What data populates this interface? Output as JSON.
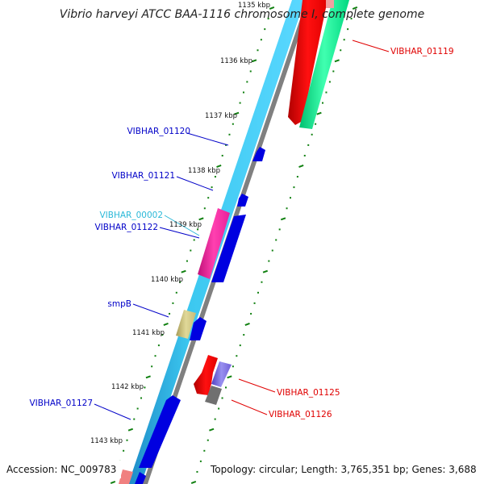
{
  "title": "Vibrio harveyi ATCC BAA-1116 chromosome I, complete genome",
  "footer": {
    "accession": "Accession: NC_009783",
    "summary": "Topology: circular; Length: 3,765,351 bp; Genes: 3,688"
  },
  "scale_labels": [
    "1135 kbp",
    "1136 kbp",
    "1137 kbp",
    "1138 kbp",
    "1139 kbp",
    "1140 kbp",
    "1141 kbp",
    "1142 kbp",
    "1143 kbp"
  ],
  "gene_labels": {
    "left": [
      {
        "text": "VIBHAR_01120",
        "color": "#0000c8"
      },
      {
        "text": "VIBHAR_01121",
        "color": "#0000c8"
      },
      {
        "text": "VIBHAR_00002",
        "color": "#2ab8d8"
      },
      {
        "text": "VIBHAR_01122",
        "color": "#0000c8"
      },
      {
        "text": "smpB",
        "color": "#0000c8"
      },
      {
        "text": "VIBHAR_01127",
        "color": "#0000c8"
      }
    ],
    "right": [
      {
        "text": "VIBHAR_01119",
        "color": "#e00000"
      },
      {
        "text": "VIBHAR_01125",
        "color": "#e00000"
      },
      {
        "text": "VIBHAR_01126",
        "color": "#e00000"
      }
    ]
  },
  "colors": {
    "backbone_light": "#3cc8f0",
    "backbone_dark": "#1e8cc8",
    "cds_blue": "#0000e0",
    "gene_red": "#e00000",
    "gene_green": "#00e890",
    "gene_magenta": "#e8209a",
    "gene_khaki": "#c8bc78",
    "gene_purple": "#7060d8",
    "gene_grey": "#707070",
    "gene_pink": "#f08080",
    "tick_green": "#108010",
    "backbone_grey": "#808080"
  }
}
